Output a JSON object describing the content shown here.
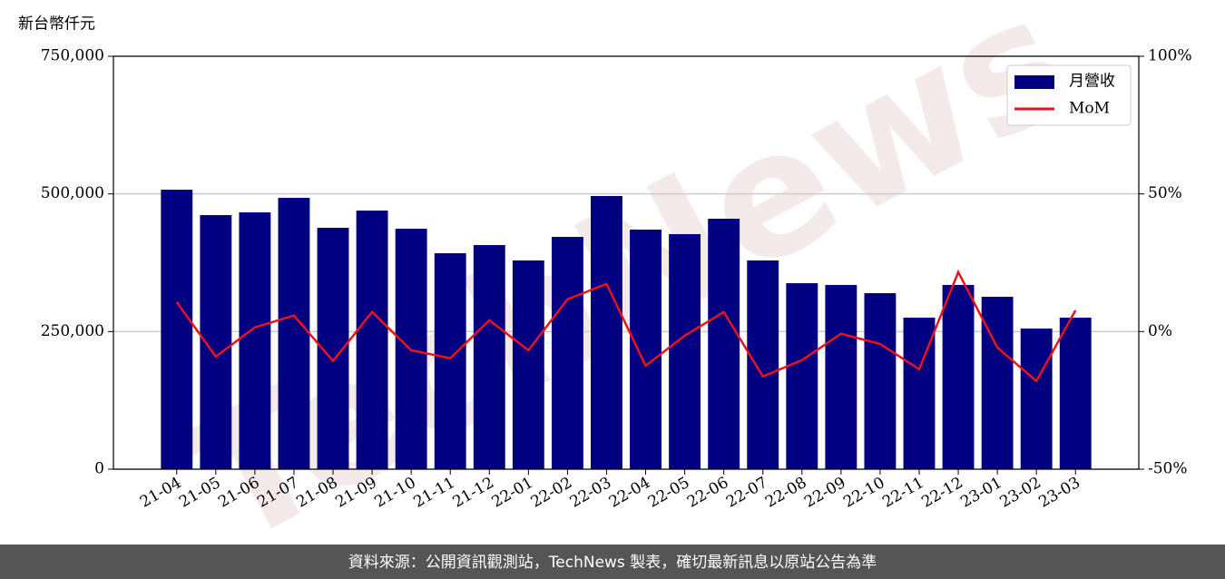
{
  "chart_data": {
    "type": "bar_line",
    "y_label": "新台幣仟元",
    "watermark": "TechNews",
    "footer": "資料來源：公開資訊觀測站，TechNews 製表，確切最新訊息以原站公告為準",
    "categories": [
      "21-04",
      "21-05",
      "21-06",
      "21-07",
      "21-08",
      "21-09",
      "21-10",
      "21-11",
      "21-12",
      "22-01",
      "22-02",
      "22-03",
      "22-04",
      "22-05",
      "22-06",
      "22-07",
      "22-08",
      "22-09",
      "22-10",
      "22-11",
      "22-12",
      "23-01",
      "23-02",
      "23-03"
    ],
    "series": [
      {
        "name": "月營收",
        "type": "bar",
        "color": "#000080",
        "values": [
          507600,
          461500,
          466400,
          492800,
          438400,
          469700,
          436700,
          392200,
          407100,
          379100,
          421900,
          496100,
          435100,
          426900,
          454900,
          379100,
          337800,
          334600,
          319700,
          275200,
          334600,
          313100,
          255400,
          275200
        ]
      },
      {
        "name": "MoM",
        "type": "line",
        "color": "#e8141b",
        "axis": "y2",
        "values": [
          10.7,
          -9.1,
          1.5,
          5.8,
          -10.7,
          7.1,
          -6.8,
          -9.7,
          4.1,
          -6.8,
          11.7,
          17.3,
          -12.4,
          -1.5,
          7.1,
          -16.3,
          -10.4,
          -0.8,
          -4.5,
          -13.7,
          21.6,
          -5.8,
          -18.0,
          7.7
        ]
      }
    ],
    "ylim": [
      0,
      750000
    ],
    "yticks": [
      0,
      {
        "value": 250000,
        "label": "250,000"
      },
      {
        "value": 500000,
        "label": "500,000"
      },
      {
        "value": 750000,
        "label": "750,000"
      }
    ],
    "y2lim": [
      -50,
      100
    ],
    "y2ticks": [
      {
        "value": -50,
        "label": "-50%"
      },
      {
        "value": 0,
        "label": "0%"
      },
      {
        "value": 50,
        "label": "50%"
      },
      {
        "value": 100,
        "label": "100%"
      }
    ],
    "grid": true,
    "legend": "upper right"
  }
}
